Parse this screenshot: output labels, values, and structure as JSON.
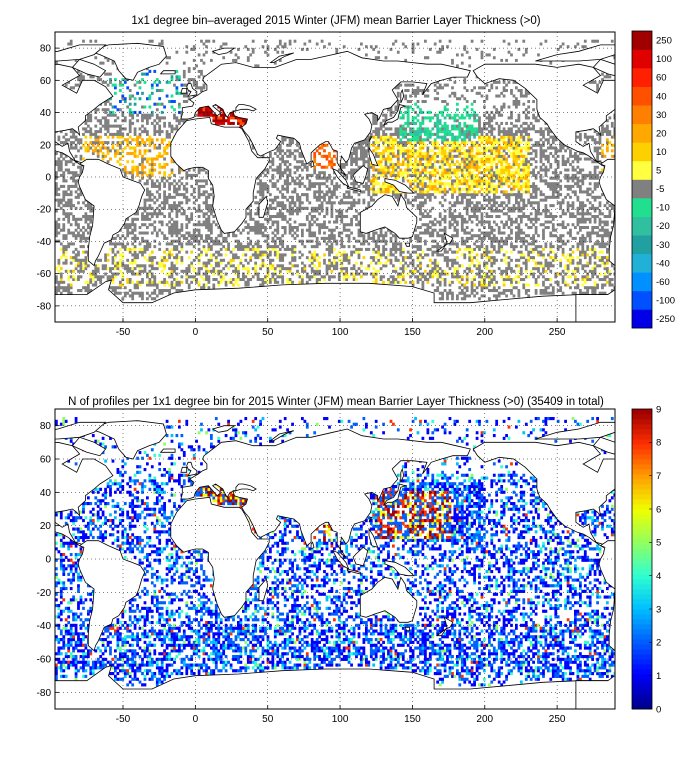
{
  "chart_data": [
    {
      "type": "heatmap",
      "title": "1x1 degree bin–averaged 2015 Winter (JFM) mean Barrier Layer Thickness (>0)",
      "xlabel": "",
      "ylabel": "",
      "xlim": [
        -97,
        290
      ],
      "ylim": [
        -90,
        90
      ],
      "xticks": [
        -50,
        0,
        50,
        100,
        150,
        200,
        250
      ],
      "yticks": [
        -80,
        -60,
        -40,
        -20,
        0,
        20,
        40,
        60,
        80
      ],
      "grid": true,
      "colorbar": {
        "labels": [
          "-250",
          "-100",
          "-60",
          "-40",
          "-30",
          "-20",
          "-10",
          "-5",
          "5",
          "10",
          "20",
          "30",
          "40",
          "60",
          "100",
          "250"
        ],
        "colors": [
          "#0000e8",
          "#0050ff",
          "#0090ff",
          "#20b0d8",
          "#20a0a0",
          "#30c0a0",
          "#20e090",
          "#808080",
          "#ffff40",
          "#ffd000",
          "#ffa800",
          "#ff8000",
          "#ff5000",
          "#ff2000",
          "#e00000",
          "#a00000"
        ]
      },
      "data_summary": {
        "dominant_bin": "-5 to 5 (grey)",
        "positive_thick_regions": [
          "Mediterranean Sea",
          "Western Pacific 0-30N",
          "Bay of Bengal",
          "Southern Ocean 50-60S"
        ],
        "negative_regions": [
          "North Pacific 30-40N",
          "North Atlantic 40-60N",
          "Labrador Sea"
        ]
      }
    },
    {
      "type": "heatmap",
      "title": "N of profiles per 1x1 degree bin for 2015 Winter (JFM) mean Barrier Layer Thickness (>0) (35409 in total)",
      "xlabel": "",
      "ylabel": "",
      "xlim": [
        -97,
        290
      ],
      "ylim": [
        -90,
        90
      ],
      "xticks": [
        -50,
        0,
        50,
        100,
        150,
        200,
        250
      ],
      "yticks": [
        -80,
        -60,
        -40,
        -20,
        0,
        20,
        40,
        60,
        80
      ],
      "grid": true,
      "total_profiles": 35409,
      "colorbar": {
        "range": [
          0,
          9
        ],
        "labels": [
          "0",
          "1",
          "2",
          "3",
          "4",
          "5",
          "6",
          "7",
          "8",
          "9"
        ],
        "colors": [
          "#00008f",
          "#0000ff",
          "#0060ff",
          "#00c0ff",
          "#30ffd0",
          "#90ff60",
          "#f0ff00",
          "#ffa000",
          "#ff3000",
          "#a00000"
        ]
      },
      "data_summary": {
        "dominant_count": "1-2 (blue)",
        "high_count_regions": [
          "Mediterranean Sea",
          "Northwest Pacific",
          "Bay of Bengal",
          "Red Sea"
        ]
      }
    }
  ]
}
